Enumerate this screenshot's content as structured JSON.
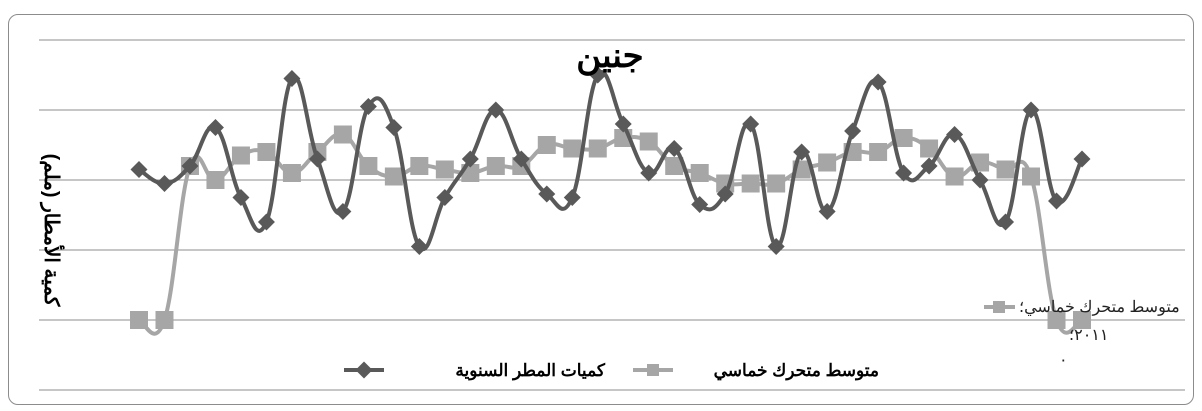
{
  "top_caption": "",
  "chart_data": {
    "type": "line",
    "title": "جنين",
    "ylabel": "كمية الأمطار (ملم)",
    "xlabel": "",
    "grid": true,
    "legend_position": "bottom",
    "ylim": [
      -1,
      4
    ],
    "series": [
      {
        "name": "كميات المطر السنوية",
        "color": "#595959",
        "marker": "diamond",
        "values": [
          2.15,
          1.95,
          2.2,
          2.75,
          1.75,
          1.4,
          3.45,
          2.3,
          1.55,
          3.05,
          2.75,
          1.05,
          1.75,
          2.3,
          3.0,
          2.3,
          1.8,
          1.75,
          3.5,
          2.8,
          2.1,
          2.45,
          1.65,
          1.8,
          2.8,
          1.05,
          2.4,
          1.55,
          2.7,
          3.4,
          2.1,
          2.2,
          2.65,
          2.0,
          1.4,
          3.0,
          1.7,
          2.3
        ]
      },
      {
        "name": "متوسط متحرك خماسي",
        "color": "#a6a6a6",
        "marker": "square",
        "values": [
          0.0,
          0.0,
          2.2,
          2.0,
          2.35,
          2.4,
          2.1,
          2.4,
          2.65,
          2.2,
          2.05,
          2.2,
          2.15,
          2.1,
          2.2,
          2.2,
          2.5,
          2.45,
          2.45,
          2.6,
          2.55,
          2.2,
          2.1,
          1.95,
          1.95,
          1.95,
          2.15,
          2.25,
          2.4,
          2.4,
          2.6,
          2.45,
          2.05,
          2.25,
          2.15,
          2.05,
          0.0,
          0.0
        ]
      }
    ],
    "annotation": {
      "series_label": "متوسط متحرك خماسي؛",
      "value_label": "٢٠١١؛",
      "value_label_2": "٠"
    }
  }
}
